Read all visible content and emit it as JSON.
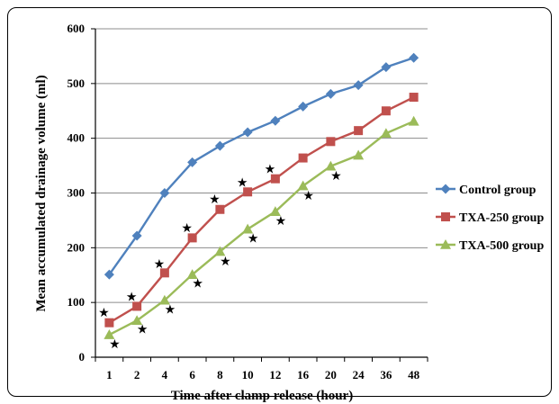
{
  "chart_data": {
    "type": "line",
    "title": "",
    "xlabel": "Time after clamp release (hour)",
    "ylabel": "Mean accumulated drainage volume (ml)",
    "categories": [
      "1",
      "2",
      "4",
      "6",
      "8",
      "10",
      "12",
      "16",
      "20",
      "24",
      "36",
      "48"
    ],
    "ylim": [
      0,
      600
    ],
    "yticks": [
      "0",
      "100",
      "200",
      "300",
      "400",
      "500",
      "600"
    ],
    "grid": "horizontal",
    "legend_position": "right",
    "series": [
      {
        "name": "Control group",
        "color": "#4f81bd",
        "marker": "diamond",
        "values": [
          151,
          222,
          300,
          356,
          386,
          411,
          432,
          458,
          481,
          497,
          530,
          547
        ]
      },
      {
        "name": "TXA-250 group",
        "color": "#c0504d",
        "marker": "square",
        "values": [
          63,
          93,
          154,
          218,
          270,
          302,
          326,
          364,
          394,
          414,
          450,
          475
        ]
      },
      {
        "name": "TXA-500 group",
        "color": "#9bbb59",
        "marker": "triangle",
        "values": [
          41,
          67,
          104,
          151,
          193,
          234,
          266,
          313,
          349,
          369,
          409,
          431
        ]
      }
    ],
    "annotations": {
      "symbol": "★",
      "upper_stars": [
        {
          "category_index": 0,
          "y": 82
        },
        {
          "category_index": 1,
          "y": 111
        },
        {
          "category_index": 2,
          "y": 171
        },
        {
          "category_index": 3,
          "y": 237
        },
        {
          "category_index": 4,
          "y": 289
        },
        {
          "category_index": 5,
          "y": 320
        },
        {
          "category_index": 6,
          "y": 344
        }
      ],
      "lower_stars": [
        {
          "category_index": 0,
          "y": 25
        },
        {
          "category_index": 1,
          "y": 52
        },
        {
          "category_index": 2,
          "y": 88
        },
        {
          "category_index": 3,
          "y": 136
        },
        {
          "category_index": 4,
          "y": 176
        },
        {
          "category_index": 5,
          "y": 218
        },
        {
          "category_index": 6,
          "y": 250
        },
        {
          "category_index": 7,
          "y": 296
        },
        {
          "category_index": 8,
          "y": 332
        }
      ]
    }
  }
}
